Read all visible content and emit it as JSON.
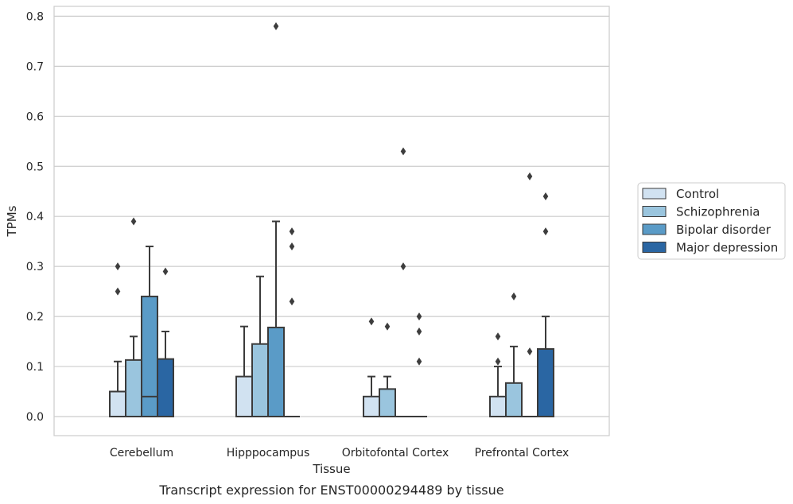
{
  "colors": {
    "series": [
      "#d1e2f1",
      "#9ac5de",
      "#5a9bc7",
      "#2a66a3"
    ],
    "edge": "#3b3b3b",
    "grid": "#cccccc",
    "frame": "#cccccc"
  },
  "caption": "Transcript expression for ENST00000294489 by tissue",
  "chart_data": {
    "type": "box",
    "xlabel": "Tissue",
    "ylabel": "TPMs",
    "ylim": [
      -0.04,
      0.82
    ],
    "yticks": [
      0.0,
      0.1,
      0.2,
      0.3,
      0.4,
      0.5,
      0.6,
      0.7,
      0.8
    ],
    "ytick_labels": [
      "0.0",
      "0.1",
      "0.2",
      "0.3",
      "0.4",
      "0.5",
      "0.6",
      "0.7",
      "0.8"
    ],
    "grid": true,
    "legend_placement": "right",
    "categories": [
      "Cerebellum",
      "Hipppocampus",
      "Orbitofontal Cortex",
      "Prefrontal Cortex"
    ],
    "series": [
      {
        "name": "Control",
        "boxes": [
          {
            "min": 0.0,
            "q1": 0.0,
            "median": 0.0,
            "q3": 0.05,
            "max": 0.11,
            "outliers": [
              0.25,
              0.3
            ]
          },
          {
            "min": 0.0,
            "q1": 0.0,
            "median": 0.0,
            "q3": 0.08,
            "max": 0.18,
            "outliers": []
          },
          {
            "min": 0.0,
            "q1": 0.0,
            "median": 0.0,
            "q3": 0.04,
            "max": 0.08,
            "outliers": [
              0.19
            ]
          },
          {
            "min": 0.0,
            "q1": 0.0,
            "median": 0.0,
            "q3": 0.04,
            "max": 0.1,
            "outliers": [
              0.11,
              0.16
            ]
          }
        ]
      },
      {
        "name": "Schizophrenia",
        "boxes": [
          {
            "min": 0.0,
            "q1": 0.0,
            "median": 0.0,
            "q3": 0.113,
            "max": 0.16,
            "outliers": [
              0.39
            ]
          },
          {
            "min": 0.0,
            "q1": 0.0,
            "median": 0.0,
            "q3": 0.145,
            "max": 0.28,
            "outliers": []
          },
          {
            "min": 0.0,
            "q1": 0.0,
            "median": 0.0,
            "q3": 0.055,
            "max": 0.08,
            "outliers": [
              0.18
            ]
          },
          {
            "min": 0.0,
            "q1": 0.0,
            "median": 0.0,
            "q3": 0.067,
            "max": 0.14,
            "outliers": [
              0.24
            ]
          }
        ]
      },
      {
        "name": "Bipolar disorder",
        "boxes": [
          {
            "min": 0.0,
            "q1": 0.0,
            "median": 0.04,
            "q3": 0.24,
            "max": 0.34,
            "outliers": []
          },
          {
            "min": 0.0,
            "q1": 0.0,
            "median": 0.0,
            "q3": 0.178,
            "max": 0.39,
            "outliers": [
              0.78
            ]
          },
          {
            "min": 0.0,
            "q1": 0.0,
            "median": 0.0,
            "q3": 0.0,
            "max": 0.0,
            "outliers": [
              0.3,
              0.53
            ]
          },
          {
            "min": 0.0,
            "q1": 0.0,
            "median": 0.0,
            "q3": 0.0,
            "max": 0.0,
            "outliers": [
              0.13,
              0.48
            ]
          }
        ]
      },
      {
        "name": "Major depression",
        "boxes": [
          {
            "min": 0.0,
            "q1": 0.0,
            "median": 0.0,
            "q3": 0.115,
            "max": 0.17,
            "outliers": [
              0.29
            ]
          },
          {
            "min": 0.0,
            "q1": 0.0,
            "median": 0.0,
            "q3": 0.0,
            "max": 0.0,
            "outliers": [
              0.23,
              0.34,
              0.37
            ]
          },
          {
            "min": 0.0,
            "q1": 0.0,
            "median": 0.0,
            "q3": 0.0,
            "max": 0.0,
            "outliers": [
              0.11,
              0.17,
              0.2
            ]
          },
          {
            "min": 0.0,
            "q1": 0.0,
            "median": 0.0,
            "q3": 0.135,
            "max": 0.2,
            "outliers": [
              0.37,
              0.44
            ]
          }
        ]
      }
    ]
  }
}
